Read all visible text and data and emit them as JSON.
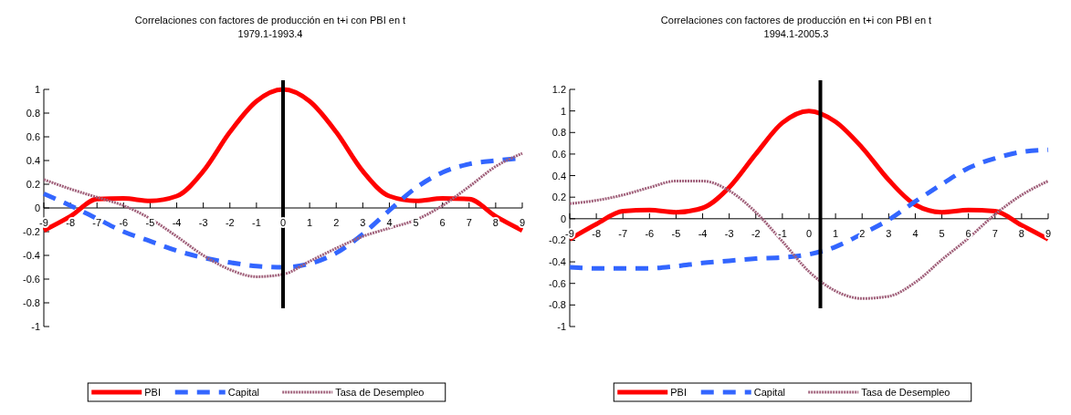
{
  "chart_data": [
    {
      "type": "line",
      "title": "Correlaciones con factores de producción en t+i con PBI en t",
      "subtitle": "1979.1-1993.4",
      "x": [
        -9,
        -8,
        -7,
        -6,
        -5,
        -4,
        -3,
        -2,
        -1,
        0,
        1,
        2,
        3,
        4,
        5,
        6,
        7,
        8,
        9
      ],
      "xlim": [
        -9,
        9
      ],
      "xticks": [
        -9,
        -8,
        -7,
        -6,
        -5,
        -4,
        -3,
        -2,
        -1,
        0,
        1,
        2,
        3,
        4,
        5,
        6,
        7,
        8,
        9
      ],
      "ylim": [
        -1,
        1
      ],
      "yticks": [
        -1,
        -0.8,
        -0.6,
        -0.4,
        -0.2,
        0,
        0.2,
        0.4,
        0.6,
        0.8,
        1
      ],
      "grid": false,
      "legend": "bottom",
      "marker": "none",
      "ref_lines": [
        {
          "axis": "x",
          "value": 0,
          "color": "#000000"
        }
      ],
      "series": [
        {
          "name": "PBI",
          "color": "#ff0000",
          "line_style": "solid",
          "values": [
            -0.19,
            -0.07,
            0.075,
            0.08,
            0.06,
            0.1,
            0.31,
            0.64,
            0.9,
            1.0,
            0.9,
            0.64,
            0.31,
            0.1,
            0.06,
            0.08,
            0.075,
            -0.07,
            -0.19
          ]
        },
        {
          "name": "Capital",
          "color": "#3366ff",
          "line_style": "dashed",
          "values": [
            0.12,
            0.02,
            -0.09,
            -0.2,
            -0.28,
            -0.36,
            -0.42,
            -0.46,
            -0.49,
            -0.5,
            -0.47,
            -0.38,
            -0.22,
            -0.02,
            0.17,
            0.3,
            0.37,
            0.4,
            0.42
          ]
        },
        {
          "name": "Tasa de Desempleo",
          "color": "#a0607a",
          "line_style": "dotted",
          "values": [
            0.24,
            0.16,
            0.09,
            0.02,
            -0.09,
            -0.24,
            -0.4,
            -0.52,
            -0.58,
            -0.56,
            -0.45,
            -0.34,
            -0.24,
            -0.17,
            -0.1,
            0.02,
            0.18,
            0.35,
            0.46
          ]
        }
      ]
    },
    {
      "type": "line",
      "title": "Correlaciones con factores de producción en t+i con PBI en t",
      "subtitle": "1994.1-2005.3",
      "x": [
        -9,
        -8,
        -7,
        -6,
        -5,
        -4,
        -3,
        -2,
        -1,
        0,
        1,
        2,
        3,
        4,
        5,
        6,
        7,
        8,
        9
      ],
      "xlim": [
        -9,
        9
      ],
      "xticks": [
        -9,
        -8,
        -7,
        -6,
        -5,
        -4,
        -3,
        -2,
        -1,
        0,
        1,
        2,
        3,
        4,
        5,
        6,
        7,
        8,
        9
      ],
      "ylim": [
        -1,
        1.2
      ],
      "yticks": [
        -1,
        -0.8,
        -0.6,
        -0.4,
        -0.2,
        0,
        0.2,
        0.4,
        0.6,
        0.8,
        1,
        1.2
      ],
      "grid": false,
      "legend": "bottom",
      "marker": "none",
      "ref_lines": [
        {
          "axis": "x",
          "value": 0.43,
          "color": "#000000"
        }
      ],
      "series": [
        {
          "name": "PBI",
          "color": "#ff0000",
          "line_style": "solid",
          "values": [
            -0.19,
            -0.05,
            0.07,
            0.08,
            0.06,
            0.1,
            0.29,
            0.6,
            0.89,
            1.0,
            0.9,
            0.66,
            0.36,
            0.13,
            0.06,
            0.08,
            0.07,
            -0.06,
            -0.19
          ]
        },
        {
          "name": "Capital",
          "color": "#3366ff",
          "line_style": "dashed",
          "values": [
            -0.45,
            -0.46,
            -0.46,
            -0.46,
            -0.44,
            -0.41,
            -0.39,
            -0.37,
            -0.36,
            -0.33,
            -0.26,
            -0.14,
            -0.01,
            0.16,
            0.32,
            0.47,
            0.56,
            0.62,
            0.64
          ]
        },
        {
          "name": "Tasa de Desempleo",
          "color": "#a0607a",
          "line_style": "dotted",
          "values": [
            0.14,
            0.17,
            0.22,
            0.29,
            0.35,
            0.35,
            0.26,
            0.06,
            -0.21,
            -0.49,
            -0.67,
            -0.74,
            -0.72,
            -0.59,
            -0.38,
            -0.18,
            0.04,
            0.22,
            0.35
          ]
        }
      ]
    }
  ]
}
